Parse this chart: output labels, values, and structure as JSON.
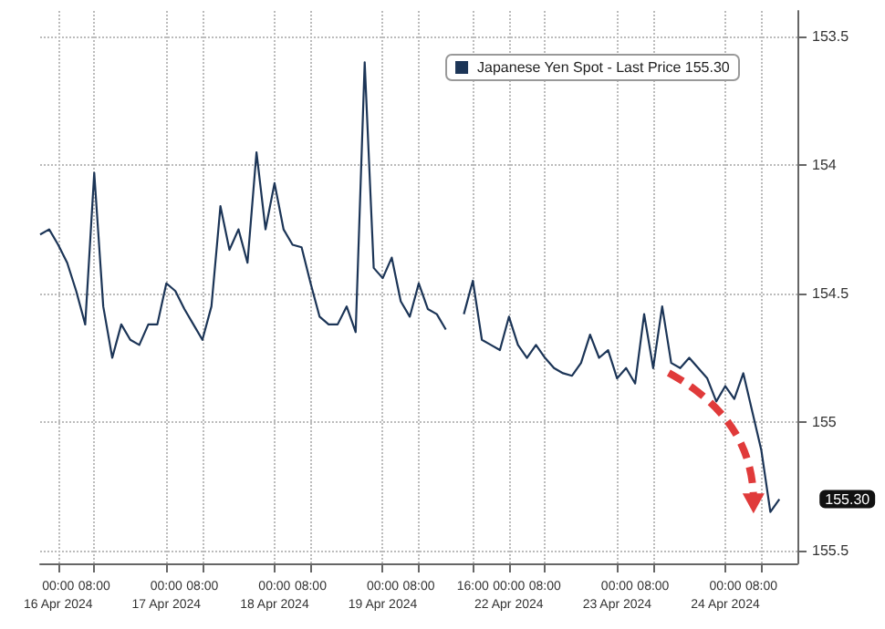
{
  "chart_data": {
    "type": "line",
    "legend": "top right",
    "grid": true,
    "marker": "none",
    "ylim": [
      155.55,
      153.4
    ],
    "yticks": [
      153.5,
      154,
      154.5,
      155,
      155.5
    ],
    "annotations": [
      "155.30"
    ],
    "categories": [
      null,
      null,
      "00:00\n16 Apr 2024",
      null,
      null,
      null,
      "08:00",
      null,
      null,
      null,
      null,
      null,
      null,
      null,
      "00:00\n17 Apr 2024",
      null,
      null,
      null,
      "08:00",
      null,
      null,
      null,
      null,
      null,
      null,
      null,
      "00:00\n18 Apr 2024",
      null,
      null,
      null,
      "08:00",
      null,
      null,
      null,
      null,
      null,
      null,
      null,
      "00:00\n19 Apr 2024",
      null,
      null,
      null,
      "08:00",
      null,
      null,
      null,
      null,
      null,
      "16:00",
      null,
      null,
      null,
      "00:00\n22 Apr 2024",
      null,
      null,
      null,
      "08:00",
      null,
      null,
      null,
      null,
      null,
      null,
      null,
      "00:00\n23 Apr 2024",
      null,
      null,
      null,
      "08:00",
      null,
      null,
      null,
      null,
      null,
      null,
      null,
      "00:00\n24 Apr 2024",
      null,
      null,
      null,
      "08:00",
      null,
      null,
      null,
      null
    ],
    "series": [
      {
        "name": "Japanese Yen Spot - Last Price 155.30",
        "color": "#1c3557",
        "values": [
          154.27,
          154.25,
          154.31,
          154.38,
          154.49,
          154.62,
          154.03,
          154.55,
          154.75,
          154.62,
          154.68,
          154.7,
          154.62,
          154.62,
          154.46,
          154.49,
          154.56,
          154.62,
          154.68,
          154.55,
          154.16,
          154.33,
          154.25,
          154.38,
          153.95,
          154.25,
          154.07,
          154.25,
          154.31,
          154.32,
          154.46,
          154.59,
          154.62,
          154.62,
          154.55,
          154.65,
          153.6,
          154.4,
          154.44,
          154.36,
          154.53,
          154.59,
          154.46,
          154.56,
          154.58,
          154.64,
          null,
          154.58,
          154.45,
          154.68,
          154.7,
          154.72,
          154.59,
          154.7,
          154.75,
          154.7,
          154.75,
          154.79,
          154.81,
          154.82,
          154.77,
          154.66,
          154.75,
          154.72,
          154.83,
          154.79,
          154.85,
          154.58,
          154.79,
          154.55,
          154.77,
          154.79,
          154.75,
          154.79,
          154.83,
          154.92,
          154.86,
          154.91,
          154.81,
          154.96,
          155.11,
          155.35,
          155.3,
          null,
          null
        ]
      }
    ]
  }
}
